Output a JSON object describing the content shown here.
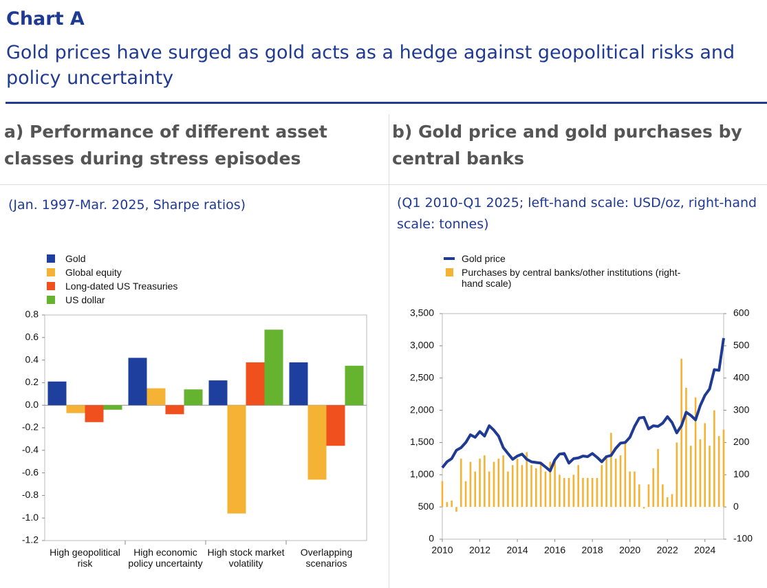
{
  "header": {
    "label": "Chart A",
    "title": "Gold prices have surged as gold acts as a hedge against geopolitical risks and policy uncertainty"
  },
  "chart_data": [
    {
      "type": "bar",
      "title": "a) Performance of different asset classes during stress episodes",
      "subtitle": "(Jan. 1997-Mar. 2025, Sharpe ratios)",
      "categories": [
        "High geopolitical risk",
        "High economic policy uncertainty",
        "High stock market volatility",
        "Overlapping scenarios"
      ],
      "series": [
        {
          "name": "Gold",
          "color": "#1f3f9e",
          "values": [
            0.21,
            0.42,
            0.22,
            0.38
          ]
        },
        {
          "name": "Global equity",
          "color": "#f5b335",
          "values": [
            -0.07,
            0.15,
            -0.96,
            -0.66
          ]
        },
        {
          "name": "Long-dated US Treasuries",
          "color": "#f0501e",
          "values": [
            -0.15,
            -0.08,
            0.38,
            -0.36
          ]
        },
        {
          "name": "US dollar",
          "color": "#65b32e",
          "values": [
            -0.04,
            0.14,
            0.67,
            0.35
          ]
        }
      ],
      "ylim": [
        -1.2,
        0.8
      ],
      "yticks": [
        -1.2,
        {
          "value": -1,
          "label": "-1.0"
        },
        -0.8,
        -0.6,
        -0.4,
        -0.2,
        {
          "value": 0,
          "label": "0.0"
        },
        0.2,
        0.4,
        0.6,
        0.8
      ],
      "legend": "top-left"
    },
    {
      "type": "combo",
      "title": "b) Gold price and gold purchases by central banks",
      "subtitle": "(Q1 2010-Q1 2025; left-hand scale: USD/oz, right-hand scale: tonnes)",
      "x": [
        2010,
        2010.25,
        2010.5,
        2010.75,
        2011,
        2011.25,
        2011.5,
        2011.75,
        2012,
        2012.25,
        2012.5,
        2012.75,
        2013,
        2013.25,
        2013.5,
        2013.75,
        2014,
        2014.25,
        2014.5,
        2014.75,
        2015,
        2015.25,
        2015.5,
        2015.75,
        2016,
        2016.25,
        2016.5,
        2016.75,
        2017,
        2017.25,
        2017.5,
        2017.75,
        2018,
        2018.25,
        2018.5,
        2018.75,
        2019,
        2019.25,
        2019.5,
        2019.75,
        2020,
        2020.25,
        2020.5,
        2020.75,
        2021,
        2021.25,
        2021.5,
        2021.75,
        2022,
        2022.25,
        2022.5,
        2022.75,
        2023,
        2023.25,
        2023.5,
        2023.75,
        2024,
        2024.25,
        2024.5,
        2024.75,
        2025
      ],
      "series": [
        {
          "name": "Purchases by central banks/other institutions (right-hand scale)",
          "type": "bar",
          "axis": "y2",
          "color": "#f5b335",
          "values": [
            80,
            15,
            20,
            -15,
            150,
            80,
            140,
            110,
            150,
            160,
            110,
            140,
            150,
            160,
            110,
            130,
            150,
            130,
            170,
            130,
            120,
            140,
            110,
            140,
            140,
            100,
            90,
            90,
            100,
            130,
            90,
            90,
            90,
            90,
            130,
            160,
            230,
            150,
            160,
            200,
            110,
            110,
            70,
            -5,
            70,
            120,
            180,
            70,
            30,
            40,
            200,
            460,
            370,
            190,
            340,
            210,
            260,
            190,
            300,
            220,
            240
          ]
        },
        {
          "name": "Gold price",
          "type": "line",
          "color": "#1f3a93",
          "values": [
            1110,
            1200,
            1250,
            1380,
            1420,
            1500,
            1620,
            1580,
            1670,
            1600,
            1760,
            1690,
            1600,
            1420,
            1330,
            1240,
            1290,
            1320,
            1240,
            1200,
            1190,
            1180,
            1120,
            1060,
            1230,
            1320,
            1330,
            1180,
            1250,
            1260,
            1290,
            1280,
            1330,
            1270,
            1200,
            1280,
            1300,
            1410,
            1490,
            1500,
            1580,
            1750,
            1880,
            1890,
            1710,
            1760,
            1750,
            1800,
            1900,
            1810,
            1650,
            1760,
            1970,
            1920,
            1850,
            2070,
            2230,
            2330,
            2630,
            2620,
            3120
          ]
        }
      ],
      "ylim": [
        0,
        3500
      ],
      "yticks": [
        0,
        500,
        {
          "value": 1000,
          "label": "1,000"
        },
        {
          "value": 1500,
          "label": "1,500"
        },
        {
          "value": 2000,
          "label": "2,000"
        },
        {
          "value": 2500,
          "label": "2,500"
        },
        {
          "value": 3000,
          "label": "3,000"
        },
        {
          "value": 3500,
          "label": "3,500"
        }
      ],
      "y2lim": [
        -100,
        600
      ],
      "y2ticks": [
        -100,
        0,
        100,
        200,
        300,
        400,
        500,
        600
      ],
      "xlim": [
        2010,
        2025
      ],
      "xticks": [
        2010,
        2012,
        2014,
        2016,
        2018,
        2020,
        2022,
        2024
      ],
      "legend": "top-left"
    }
  ]
}
